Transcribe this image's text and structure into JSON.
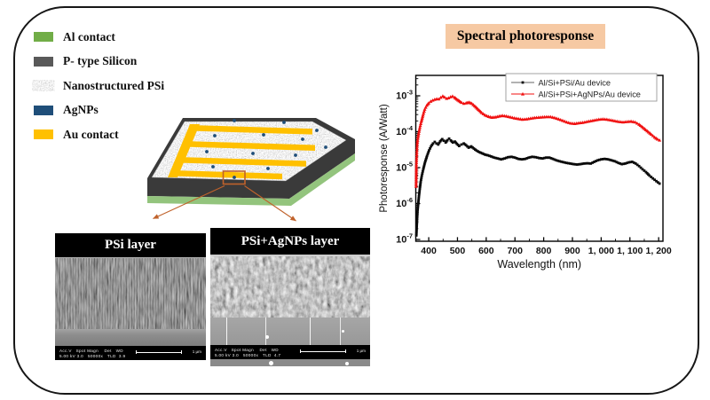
{
  "figure": {
    "legend": {
      "items": [
        {
          "label": "Al contact",
          "color": "#71ad47"
        },
        {
          "label": "P- type Silicon",
          "color": "#595959"
        },
        {
          "label": "Nanostructured PSi",
          "color": "speckle"
        },
        {
          "label": "AgNPs",
          "color": "#1f4e79"
        },
        {
          "label": "Au contact",
          "color": "#ffc000"
        }
      ]
    },
    "title_box": {
      "text": "Spectral photoresponse",
      "bg": "#f6c9a3"
    },
    "device": {
      "colors": {
        "gold": "#ffc000",
        "silicon": "#3a3a3a",
        "aluminum": "#93c47d",
        "agnp": "#1f4e79",
        "outline": "#c0622b",
        "speckle_base": "#e6e6e6"
      }
    },
    "sem_left": {
      "title": "PSi layer",
      "info_line1": "Acc.V   Spot Magn    Det   WD",
      "info_line2": "5.00 kV 3.0   50000x   TLD  3.9",
      "scale_label": "1 μm"
    },
    "sem_right": {
      "title": "PSi+AgNPs layer",
      "info_line1": "Acc.V   Spot Magn    Det   WD",
      "info_line2": "5.00 kV 3.0   50000x   TLD  4.7",
      "scale_label": "1 μm"
    }
  },
  "chart_data": {
    "type": "line",
    "title": "Spectral photoresponse",
    "xlabel": "Wavelength (nm)",
    "ylabel": "Photoresponse  (A/Watt)",
    "x_scale": "linear",
    "y_scale": "log",
    "xlim": [
      355,
      1215
    ],
    "ylim_exponents": [
      -7.05,
      -2.43
    ],
    "x_ticks": [
      400,
      500,
      600,
      700,
      800,
      900,
      1000,
      1100,
      1200
    ],
    "x_tick_labels": [
      "400",
      "500",
      "600",
      "700",
      "800",
      "900",
      "1, 000",
      "1, 100",
      "1, 200"
    ],
    "x_minor_ticks": [
      450,
      550,
      650,
      750,
      850,
      950,
      1050,
      1150
    ],
    "y_tick_exponents": [
      -3,
      -4,
      -5,
      -6,
      -7
    ],
    "grid": false,
    "legend_position": "top-center-inside",
    "series": [
      {
        "name": "Al/Si+PSi/Au device",
        "color": "#0a0a0a",
        "marker": "square",
        "points": [
          [
            357,
            1.3e-07
          ],
          [
            359,
            3e-07
          ],
          [
            361,
            6e-07
          ],
          [
            363,
            9e-07
          ],
          [
            366,
            1.6e-06
          ],
          [
            369,
            2.6e-06
          ],
          [
            372,
            4e-06
          ],
          [
            376,
            6e-06
          ],
          [
            381,
            9e-06
          ],
          [
            387,
            1.4e-05
          ],
          [
            394,
            2.1e-05
          ],
          [
            401,
            3e-05
          ],
          [
            408,
            3.9e-05
          ],
          [
            415,
            4.7e-05
          ],
          [
            421,
            5.2e-05
          ],
          [
            427,
            4.7e-05
          ],
          [
            433,
            4.4e-05
          ],
          [
            440,
            5.4e-05
          ],
          [
            447,
            6.2e-05
          ],
          [
            453,
            5.6e-05
          ],
          [
            459,
            5e-05
          ],
          [
            465,
            5.8e-05
          ],
          [
            471,
            6.4e-05
          ],
          [
            477,
            5.7e-05
          ],
          [
            484,
            5e-05
          ],
          [
            491,
            5.3e-05
          ],
          [
            498,
            4.6e-05
          ],
          [
            506,
            4e-05
          ],
          [
            514,
            4.4e-05
          ],
          [
            522,
            4.7e-05
          ],
          [
            530,
            4.2e-05
          ],
          [
            539,
            3.6e-05
          ],
          [
            548,
            3.9e-05
          ],
          [
            557,
            3.4e-05
          ],
          [
            566,
            3e-05
          ],
          [
            576,
            2.7e-05
          ],
          [
            586,
            2.5e-05
          ],
          [
            596,
            2.3e-05
          ],
          [
            606,
            2.2e-05
          ],
          [
            617,
            2.05e-05
          ],
          [
            628,
            1.9e-05
          ],
          [
            640,
            1.8e-05
          ],
          [
            652,
            1.7e-05
          ],
          [
            664,
            1.8e-05
          ],
          [
            676,
            1.95e-05
          ],
          [
            688,
            2e-05
          ],
          [
            700,
            1.9e-05
          ],
          [
            712,
            1.75e-05
          ],
          [
            724,
            1.7e-05
          ],
          [
            736,
            1.75e-05
          ],
          [
            748,
            1.9e-05
          ],
          [
            760,
            2e-05
          ],
          [
            772,
            1.95e-05
          ],
          [
            784,
            1.85e-05
          ],
          [
            796,
            1.8e-05
          ],
          [
            808,
            1.9e-05
          ],
          [
            820,
            1.9e-05
          ],
          [
            832,
            1.75e-05
          ],
          [
            844,
            1.6e-05
          ],
          [
            856,
            1.5e-05
          ],
          [
            868,
            1.42e-05
          ],
          [
            880,
            1.35e-05
          ],
          [
            892,
            1.3e-05
          ],
          [
            904,
            1.25e-05
          ],
          [
            916,
            1.22e-05
          ],
          [
            928,
            1.25e-05
          ],
          [
            940,
            1.3e-05
          ],
          [
            952,
            1.32e-05
          ],
          [
            964,
            1.3e-05
          ],
          [
            976,
            1.45e-05
          ],
          [
            988,
            1.6e-05
          ],
          [
            1000,
            1.7e-05
          ],
          [
            1012,
            1.75e-05
          ],
          [
            1024,
            1.7e-05
          ],
          [
            1036,
            1.6e-05
          ],
          [
            1048,
            1.5e-05
          ],
          [
            1060,
            1.35e-05
          ],
          [
            1072,
            1.25e-05
          ],
          [
            1084,
            1.3e-05
          ],
          [
            1096,
            1.4e-05
          ],
          [
            1108,
            1.45e-05
          ],
          [
            1120,
            1.3e-05
          ],
          [
            1132,
            1.1e-05
          ],
          [
            1144,
            9e-06
          ],
          [
            1156,
            7.5e-06
          ],
          [
            1168,
            6e-06
          ],
          [
            1180,
            5e-06
          ],
          [
            1192,
            4.2e-06
          ],
          [
            1203,
            3.6e-06
          ]
        ]
      },
      {
        "name": "Al/Si+PSi+AgNPs/Au device",
        "color": "#f01010",
        "marker": "triangle",
        "points": [
          [
            356,
            3e-06
          ],
          [
            356.5,
            6e-06
          ],
          [
            357,
            1.2e-05
          ],
          [
            358,
            2e-05
          ],
          [
            359,
            3e-05
          ],
          [
            360,
            4.5e-05
          ],
          [
            362,
            6.5e-05
          ],
          [
            365,
            9e-05
          ],
          [
            369,
            0.00013
          ],
          [
            374,
            0.00019
          ],
          [
            380,
            0.00029
          ],
          [
            386,
            0.00042
          ],
          [
            393,
            0.00054
          ],
          [
            400,
            0.00063
          ],
          [
            407,
            0.0007
          ],
          [
            414,
            0.00075
          ],
          [
            421,
            0.00079
          ],
          [
            428,
            0.00082
          ],
          [
            435,
            0.00081
          ],
          [
            442,
            0.0009
          ],
          [
            449,
            0.00098
          ],
          [
            455,
            0.00092
          ],
          [
            462,
            0.00084
          ],
          [
            469,
            0.00087
          ],
          [
            476,
            0.00093
          ],
          [
            483,
            0.00097
          ],
          [
            490,
            0.0009
          ],
          [
            498,
            0.0008
          ],
          [
            506,
            0.00072
          ],
          [
            514,
            0.00065
          ],
          [
            522,
            0.00061
          ],
          [
            530,
            0.00063
          ],
          [
            540,
            0.00066
          ],
          [
            550,
            0.00061
          ],
          [
            560,
            0.00052
          ],
          [
            572,
            0.00042
          ],
          [
            584,
            0.00034
          ],
          [
            596,
            0.00029
          ],
          [
            608,
            0.000265
          ],
          [
            620,
            0.00025
          ],
          [
            632,
            0.000255
          ],
          [
            645,
            0.00027
          ],
          [
            657,
            0.00028
          ],
          [
            670,
            0.00027
          ],
          [
            684,
            0.000255
          ],
          [
            698,
            0.00024
          ],
          [
            712,
            0.00023
          ],
          [
            726,
            0.00022
          ],
          [
            740,
            0.000225
          ],
          [
            754,
            0.000235
          ],
          [
            768,
            0.000245
          ],
          [
            782,
            0.00025
          ],
          [
            796,
            0.000255
          ],
          [
            810,
            0.00026
          ],
          [
            824,
            0.00026
          ],
          [
            838,
            0.000245
          ],
          [
            852,
            0.000225
          ],
          [
            866,
            0.000205
          ],
          [
            880,
            0.000185
          ],
          [
            894,
            0.000172
          ],
          [
            908,
            0.000168
          ],
          [
            922,
            0.000175
          ],
          [
            936,
            0.00018
          ],
          [
            950,
            0.00019
          ],
          [
            964,
            0.0002
          ],
          [
            978,
            0.00021
          ],
          [
            992,
            0.00022
          ],
          [
            1006,
            0.000225
          ],
          [
            1020,
            0.00022
          ],
          [
            1034,
            0.00021
          ],
          [
            1048,
            0.0002
          ],
          [
            1062,
            0.00019
          ],
          [
            1076,
            0.000185
          ],
          [
            1090,
            0.00019
          ],
          [
            1104,
            0.000195
          ],
          [
            1118,
            0.000185
          ],
          [
            1132,
            0.00016
          ],
          [
            1146,
            0.00013
          ],
          [
            1160,
            0.000105
          ],
          [
            1174,
            8.5e-05
          ],
          [
            1186,
            7e-05
          ],
          [
            1196,
            6.2e-05
          ],
          [
            1203,
            5.8e-05
          ]
        ]
      }
    ]
  }
}
